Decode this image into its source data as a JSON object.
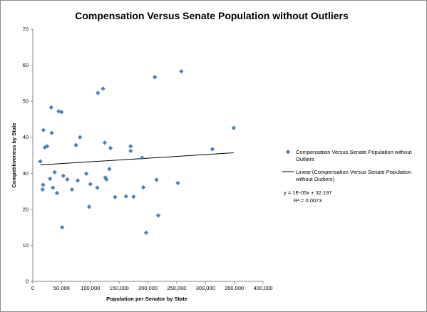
{
  "chart_data": {
    "type": "scatter",
    "title": "Compensation Versus Senate Population without Outliers",
    "xlabel": "Population per Senator by State",
    "ylabel": "Competitiveness by State",
    "xlim": [
      0,
      400000
    ],
    "ylim": [
      0,
      70
    ],
    "x_ticks": [
      0,
      50000,
      100000,
      150000,
      200000,
      250000,
      300000,
      350000,
      400000
    ],
    "x_tick_labels": [
      "0",
      "50,000",
      "100,000",
      "150,000",
      "200,000",
      "250,000",
      "300,000",
      "350,000",
      "400,000"
    ],
    "y_ticks": [
      0,
      10,
      20,
      30,
      40,
      50,
      60,
      70
    ],
    "y_tick_labels": [
      "0",
      "10",
      "20",
      "30",
      "40",
      "50",
      "60",
      "70"
    ],
    "grid": false,
    "legend_position": "right",
    "marker_color": "#4f81bd",
    "trendline_color": "#000000",
    "series": [
      {
        "name": "Compensation Versus Senate Population without Outliers",
        "x": [
          13000,
          17000,
          18000,
          18500,
          21000,
          25000,
          30000,
          32000,
          33000,
          35000,
          38000,
          42000,
          45000,
          50000,
          51000,
          53000,
          60000,
          68000,
          75000,
          78000,
          82000,
          93000,
          98000,
          100000,
          112000,
          113000,
          122000,
          125000,
          126000,
          128000,
          133000,
          135000,
          143000,
          162000,
          170000,
          170000,
          175000,
          190000,
          192000,
          197000,
          212000,
          215000,
          218000,
          252000,
          258000,
          312000,
          349000
        ],
        "y": [
          33.3,
          25.5,
          26.8,
          42.0,
          37.2,
          37.5,
          28.5,
          48.3,
          41.2,
          26.0,
          30.3,
          24.5,
          47.2,
          47.0,
          15.0,
          29.3,
          28.3,
          25.5,
          37.8,
          28.0,
          40.0,
          29.9,
          20.7,
          27.0,
          26.0,
          52.3,
          53.5,
          38.5,
          28.8,
          28.3,
          31.2,
          37.0,
          23.4,
          23.6,
          36.2,
          37.5,
          23.5,
          34.3,
          26.1,
          13.5,
          56.7,
          28.2,
          18.3,
          27.3,
          58.3,
          36.7,
          42.6
        ]
      }
    ],
    "trendline": {
      "name": "Linear (Compensation Versus Senate Population without Outliers)",
      "slope": 1e-05,
      "intercept": 32.197,
      "x_range": [
        13000,
        349000
      ],
      "equation_text": "y = 1E-05x + 32.197",
      "r2_text": "R² = 0.0073"
    }
  }
}
